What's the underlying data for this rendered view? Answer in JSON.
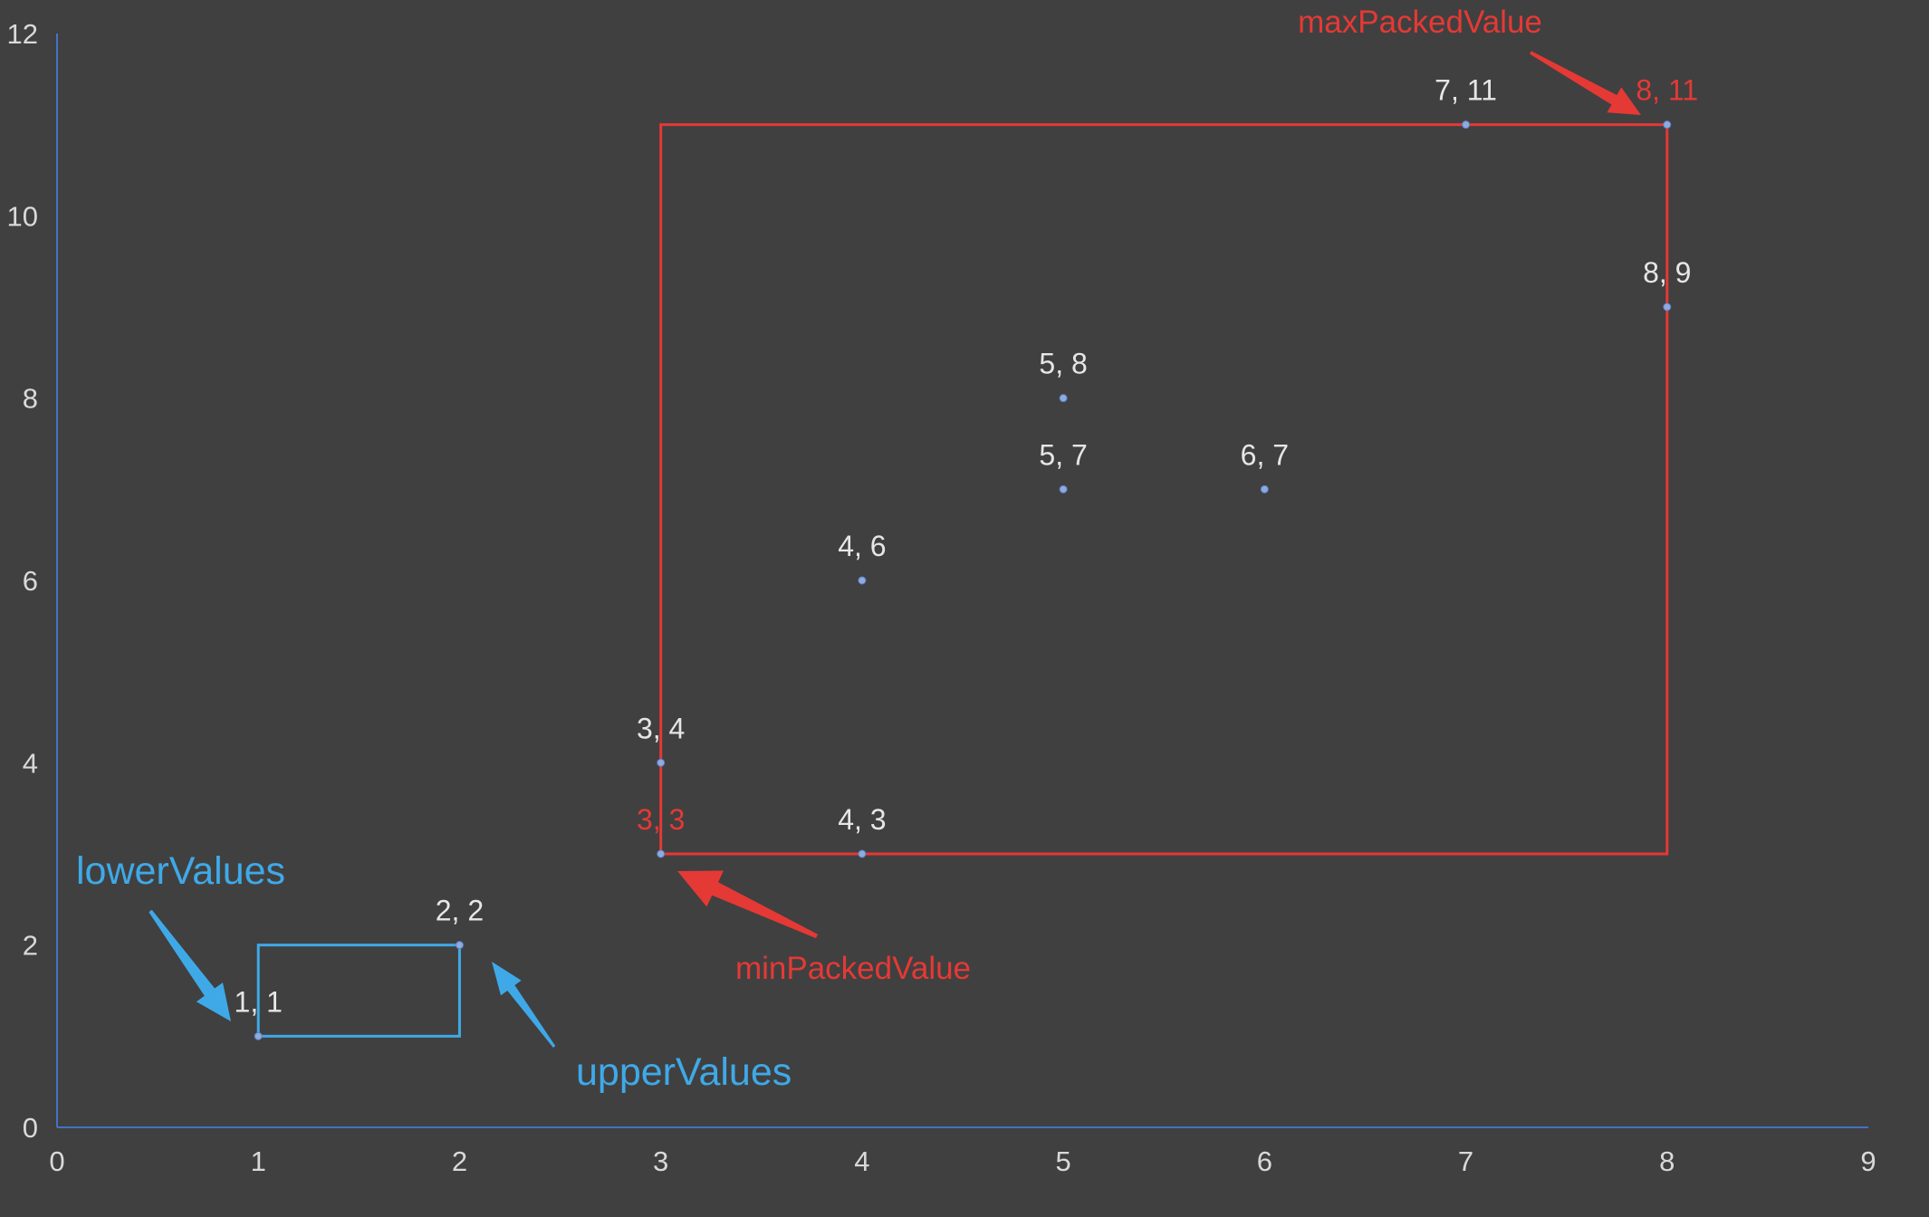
{
  "chart_data": {
    "type": "scatter",
    "title": "",
    "xlabel": "",
    "ylabel": "",
    "xlim": [
      0,
      9
    ],
    "ylim": [
      0,
      12
    ],
    "x_ticks": [
      0,
      1,
      2,
      3,
      4,
      5,
      6,
      7,
      8,
      9
    ],
    "y_ticks": [
      0,
      2,
      4,
      6,
      8,
      10,
      12
    ],
    "grid": false,
    "legend": "none",
    "points": [
      {
        "x": 1,
        "y": 1,
        "label": "1, 1",
        "highlight": false
      },
      {
        "x": 2,
        "y": 2,
        "label": "2, 2",
        "highlight": false
      },
      {
        "x": 3,
        "y": 3,
        "label": "3, 3",
        "highlight": true
      },
      {
        "x": 3,
        "y": 4,
        "label": "3, 4",
        "highlight": false
      },
      {
        "x": 4,
        "y": 3,
        "label": "4, 3",
        "highlight": false
      },
      {
        "x": 4,
        "y": 6,
        "label": "4, 6",
        "highlight": false
      },
      {
        "x": 5,
        "y": 7,
        "label": "5, 7",
        "highlight": false
      },
      {
        "x": 5,
        "y": 8,
        "label": "5, 8",
        "highlight": false
      },
      {
        "x": 6,
        "y": 7,
        "label": "6, 7",
        "highlight": false
      },
      {
        "x": 7,
        "y": 11,
        "label": "7, 11",
        "highlight": false
      },
      {
        "x": 8,
        "y": 9,
        "label": "8, 9",
        "highlight": false
      },
      {
        "x": 8,
        "y": 11,
        "label": "8, 11",
        "highlight": true
      }
    ],
    "rectangles": [
      {
        "name": "query-box",
        "x0": 1,
        "y0": 1,
        "x1": 2,
        "y1": 2,
        "color": "#3fa9e8"
      },
      {
        "name": "packed-box",
        "x0": 3,
        "y0": 3,
        "x1": 8,
        "y1": 11,
        "color": "#e53935"
      }
    ],
    "annotations": [
      {
        "text": "maxPackedValue",
        "color": "#e53935",
        "target": [
          8,
          11
        ]
      },
      {
        "text": "minPackedValue",
        "color": "#e53935",
        "target": [
          3,
          3
        ]
      },
      {
        "text": "lowerValues",
        "color": "#3fa9e8",
        "target": [
          1,
          1
        ]
      },
      {
        "text": "upperValues",
        "color": "#3fa9e8",
        "target": [
          2,
          2
        ]
      }
    ]
  },
  "colors": {
    "background": "#404040",
    "axis": "#4472c4",
    "point": "#8faadc",
    "red": "#e53935",
    "blue": "#3fa9e8"
  }
}
